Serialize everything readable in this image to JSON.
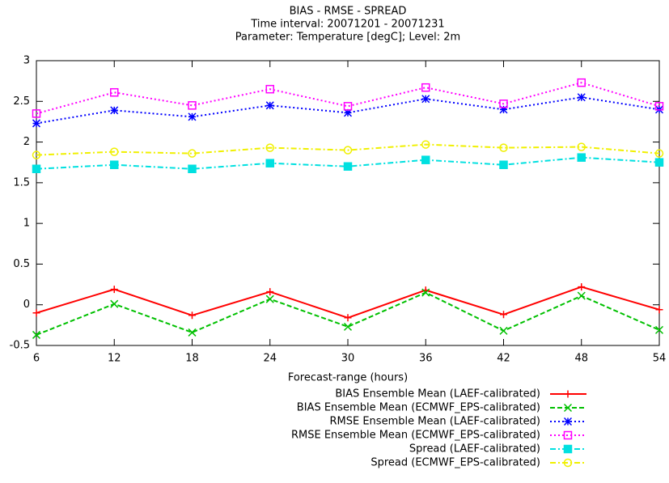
{
  "chart_data": {
    "type": "line",
    "title": "BIAS - RMSE - SPREAD",
    "subtitle": [
      "Time interval: 20071201 - 20071231",
      "Parameter: Temperature [degC]; Level: 2m"
    ],
    "x_label": "Forecast-range (hours)",
    "x": [
      6,
      12,
      18,
      24,
      30,
      36,
      42,
      48,
      54
    ],
    "xlim": [
      6,
      54
    ],
    "xticks": [
      6,
      12,
      18,
      24,
      30,
      36,
      42,
      48,
      54
    ],
    "ylim": [
      -0.5,
      3
    ],
    "yticks": [
      -0.5,
      0,
      0.5,
      1,
      1.5,
      2,
      2.5,
      3
    ],
    "grid": false,
    "legend": "bottom",
    "series": [
      {
        "name": "BIAS Ensemble Mean (LAEF-calibrated)",
        "color": "#ff0000",
        "dash": "solid",
        "marker": "plus",
        "values": [
          -0.1,
          0.19,
          -0.13,
          0.16,
          -0.16,
          0.18,
          -0.12,
          0.22,
          -0.06
        ]
      },
      {
        "name": "BIAS Ensemble Mean (ECMWF_EPS-calibrated)",
        "color": "#00c000",
        "dash": "dashed",
        "marker": "cross",
        "values": [
          -0.37,
          0.01,
          -0.34,
          0.07,
          -0.27,
          0.15,
          -0.32,
          0.11,
          -0.31
        ]
      },
      {
        "name": "RMSE Ensemble Mean (LAEF-calibrated)",
        "color": "#0000ff",
        "dash": "dotted",
        "marker": "star",
        "values": [
          2.23,
          2.39,
          2.31,
          2.45,
          2.36,
          2.53,
          2.4,
          2.55,
          2.4
        ]
      },
      {
        "name": "RMSE Ensemble Mean (ECMWF_EPS-calibrated)",
        "color": "#ff00ff",
        "dash": "dotted",
        "marker": "square",
        "values": [
          2.35,
          2.61,
          2.45,
          2.65,
          2.44,
          2.67,
          2.47,
          2.73,
          2.44
        ]
      },
      {
        "name": "Spread (LAEF-calibrated)",
        "color": "#00e0e0",
        "dash": "dashdot",
        "marker": "filled-square",
        "values": [
          1.67,
          1.72,
          1.67,
          1.74,
          1.7,
          1.78,
          1.72,
          1.81,
          1.75
        ]
      },
      {
        "name": "Spread (ECMWF_EPS-calibrated)",
        "color": "#f0f000",
        "dash": "dashdot",
        "marker": "circle",
        "values": [
          1.84,
          1.88,
          1.86,
          1.93,
          1.9,
          1.97,
          1.93,
          1.94,
          1.86
        ]
      }
    ]
  }
}
